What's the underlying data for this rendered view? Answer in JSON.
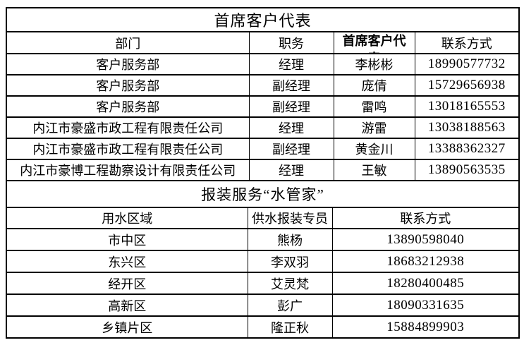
{
  "colors": {
    "background": "#ffffff",
    "border": "#000000",
    "text": "#000000"
  },
  "table1": {
    "title": "首席客户代表",
    "columns": [
      "部门",
      "职务",
      "首席客户代表",
      "联系方式"
    ],
    "rows": [
      [
        "客户服务部",
        "经理",
        "李彬彬",
        "18990577732"
      ],
      [
        "客户服务部",
        "副经理",
        "庞倩",
        "15729656938"
      ],
      [
        "客户服务部",
        "副经理",
        "雷鸣",
        "13018165553"
      ],
      [
        "内江市豪盛市政工程有限责任公司",
        "经理",
        "游雷",
        "13038188563"
      ],
      [
        "内江市豪盛市政工程有限责任公司",
        "副经理",
        "黄金川",
        "13388362327"
      ],
      [
        "内江市豪博工程勘察设计有限责任公司",
        "经理",
        "王敏",
        "13890563535"
      ]
    ]
  },
  "table2": {
    "title": "报装服务“水管家”",
    "columns": [
      "用水区域",
      "供水报装专员",
      "联系方式"
    ],
    "rows": [
      [
        "市中区",
        "熊杨",
        "13890598040"
      ],
      [
        "东兴区",
        "李双羽",
        "18683212938"
      ],
      [
        "经开区",
        "艾灵梵",
        "18280400485"
      ],
      [
        "高新区",
        "彭广",
        "18090331635"
      ],
      [
        "乡镇片区",
        "隆正秋",
        "15884899903"
      ]
    ]
  }
}
